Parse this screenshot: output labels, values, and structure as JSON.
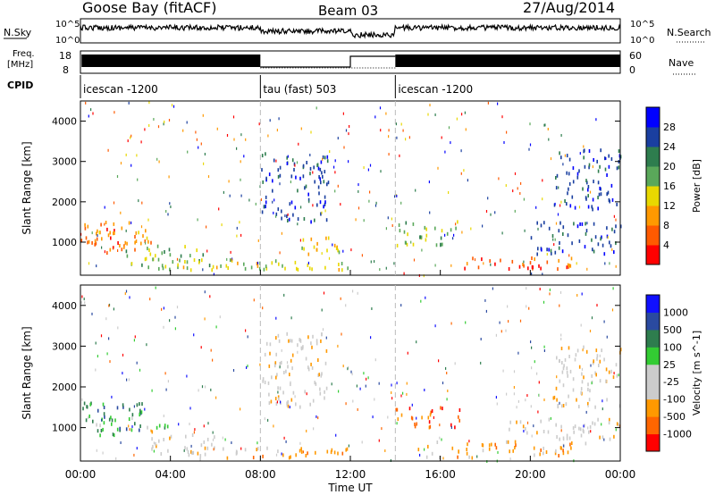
{
  "header": {
    "station": "Goose Bay (fitACF)",
    "beam": "Beam 03",
    "date": "27/Aug/2014"
  },
  "panels": {
    "nsky_label": "N.Sky",
    "freq_label_line1": "Freq.",
    "freq_label_line2": "[MHz]",
    "cpid_label": "CPID",
    "nsearch_label": "N.Search",
    "nave_label": "Nave",
    "left_ticks_top": [
      "10^5",
      "10^0"
    ],
    "right_ticks_top": [
      "10^5",
      "10^0"
    ],
    "freq_ticks": [
      "18",
      "8"
    ],
    "nave_ticks": [
      "60",
      "0"
    ],
    "cpid_segments": [
      {
        "label": "icescan -1200",
        "start_hour": 0,
        "end_hour": 8
      },
      {
        "label": "tau (fast) 503",
        "start_hour": 8,
        "end_hour": 14
      },
      {
        "label": "icescan -1200",
        "start_hour": 14,
        "end_hour": 24
      }
    ]
  },
  "colors": {
    "power_scale": [
      "#0000ff",
      "#1a3fa0",
      "#2e7d4e",
      "#5aa85a",
      "#e8d800",
      "#ff9900",
      "#ff5a00",
      "#ff0000"
    ],
    "velocity_scale": [
      "#ff0000",
      "#ff6600",
      "#ff9900",
      "#cccccc",
      "#cccccc",
      "#33cc33",
      "#2e7d4e",
      "#2a4aa0",
      "#1010ff"
    ]
  },
  "chart_data": [
    {
      "type": "heatmap",
      "name": "power",
      "title": "Goose Bay (fitACF) Beam 03 27/Aug/2014",
      "xlabel": "Time UT",
      "ylabel": "Slant Range [km]",
      "colorbar_label": "Power [dB]",
      "colorbar_ticks": [
        "28",
        "24",
        "20",
        "16",
        "12",
        "8",
        "4"
      ],
      "xlim": [
        0,
        24
      ],
      "ylim": [
        180,
        4500
      ],
      "x_ticks": [
        "00:00",
        "04:00",
        "08:00",
        "12:00",
        "16:00",
        "20:00",
        "00:00"
      ],
      "y_ticks": [
        "1000",
        "2000",
        "3000",
        "4000"
      ],
      "y_tick_values": [
        1000,
        2000,
        3000,
        4000
      ],
      "regions": [
        {
          "t0": 0.0,
          "t1": 2.5,
          "r0": 700,
          "r1": 1500,
          "level": 6
        },
        {
          "t0": 0.2,
          "t1": 3.5,
          "r0": 950,
          "r1": 1300,
          "level": 5
        },
        {
          "t0": 2.0,
          "t1": 6.0,
          "r0": 300,
          "r1": 900,
          "level": 3
        },
        {
          "t0": 4.5,
          "t1": 8.0,
          "r0": 250,
          "r1": 600,
          "level": 4
        },
        {
          "t0": 8.0,
          "t1": 12.0,
          "r0": 250,
          "r1": 550,
          "level": 4
        },
        {
          "t0": 9.5,
          "t1": 11.5,
          "r0": 600,
          "r1": 1100,
          "level": 4
        },
        {
          "t0": 8.0,
          "t1": 11.0,
          "r0": 1500,
          "r1": 3200,
          "level": 1
        },
        {
          "t0": 14.0,
          "t1": 17.0,
          "r0": 900,
          "r1": 1500,
          "level": 3
        },
        {
          "t0": 17.0,
          "t1": 22.0,
          "r0": 300,
          "r1": 600,
          "level": 6
        },
        {
          "t0": 18.5,
          "t1": 21.5,
          "r0": 330,
          "r1": 450,
          "level": 7
        },
        {
          "t0": 20.0,
          "t1": 24.0,
          "r0": 700,
          "r1": 1500,
          "level": 1
        },
        {
          "t0": 21.0,
          "t1": 24.0,
          "r0": 1800,
          "r1": 3300,
          "level": 1
        }
      ]
    },
    {
      "type": "heatmap",
      "name": "velocity",
      "xlabel": "Time UT",
      "ylabel": "Slant Range [km]",
      "colorbar_label": "Velocity [m s^-1]",
      "colorbar_ticks": [
        "1000",
        "500",
        "100",
        "25",
        "-25",
        "-100",
        "-500",
        "-1000"
      ],
      "xlim": [
        0,
        24
      ],
      "ylim": [
        180,
        4500
      ],
      "x_ticks": [
        "00:00",
        "04:00",
        "08:00",
        "12:00",
        "16:00",
        "20:00",
        "00:00"
      ],
      "y_ticks": [
        "1000",
        "2000",
        "3000",
        "4000"
      ],
      "y_tick_values": [
        1000,
        2000,
        3000,
        4000
      ],
      "regions": [
        {
          "t0": 0.0,
          "t1": 3.0,
          "r0": 800,
          "r1": 1600,
          "level": 6
        },
        {
          "t0": 0.5,
          "t1": 4.0,
          "r0": 950,
          "r1": 1250,
          "level": 5
        },
        {
          "t0": 3.0,
          "t1": 6.0,
          "r0": 300,
          "r1": 900,
          "level": 3
        },
        {
          "t0": 5.0,
          "t1": 12.0,
          "r0": 220,
          "r1": 500,
          "level": 2
        },
        {
          "t0": 8.0,
          "t1": 11.0,
          "r0": 1500,
          "r1": 3300,
          "level": 3
        },
        {
          "t0": 14.0,
          "t1": 17.0,
          "r0": 1000,
          "r1": 1500,
          "level": 1
        },
        {
          "t0": 15.0,
          "t1": 22.5,
          "r0": 250,
          "r1": 650,
          "level": 2
        },
        {
          "t0": 19.0,
          "t1": 24.0,
          "r0": 700,
          "r1": 1200,
          "level": 3
        },
        {
          "t0": 21.0,
          "t1": 24.0,
          "r0": 1500,
          "r1": 3000,
          "level": 3
        }
      ]
    }
  ],
  "footer": {
    "xlabel": "Time UT"
  }
}
